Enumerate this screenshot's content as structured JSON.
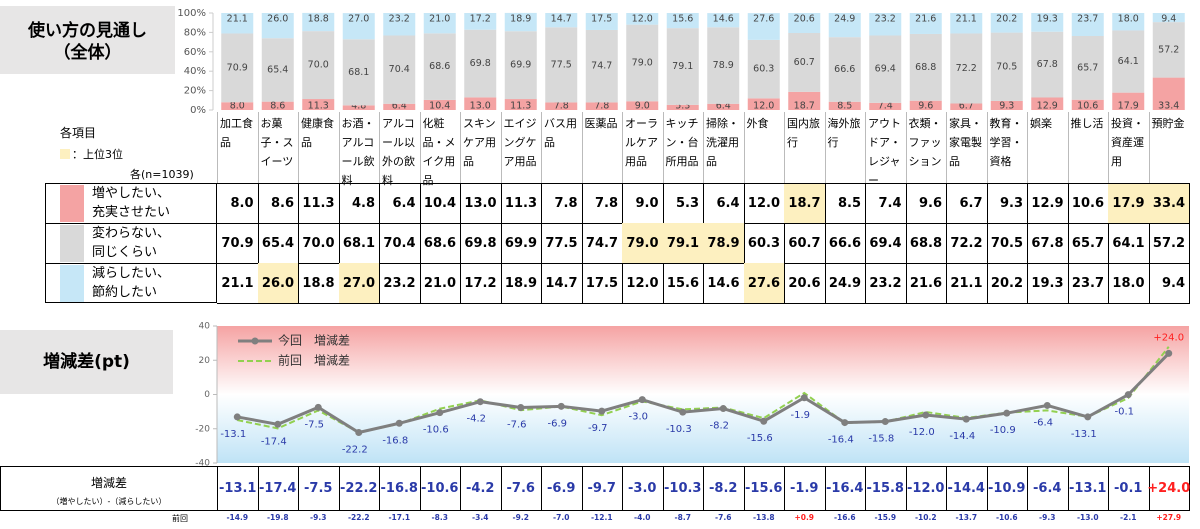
{
  "title": "使い方の見通し",
  "subtitle": "（全体）",
  "legend_note": {
    "heading": "各項目",
    "highlight": "：上位3位",
    "highlight_color": "#fdf0c0",
    "sample": "各(n=1039)"
  },
  "chart_data": [
    {
      "type": "bar",
      "stacked": true,
      "categories": [
        "加工食品",
        "お菓子・スイーツ",
        "健康食品",
        "お酒・アルコール飲料",
        "アルコール以外の飲料",
        "化粧品・メイク用品",
        "スキンケア用品",
        "エイジングケア用品",
        "バス用品",
        "医薬品",
        "オーラルケア用品",
        "キッチン・台所用品",
        "掃除・洗濯用品",
        "外食",
        "国内旅行",
        "海外旅行",
        "アウトドア・レジャー",
        "衣類・ファッション",
        "家具・家電製品",
        "教育・学習・資格",
        "娯楽",
        "推し活",
        "投資・資産運用",
        "預貯金"
      ],
      "series": [
        {
          "name": "増やしたい、充実させたい",
          "color": "#f4a3a3",
          "values": [
            8.0,
            8.6,
            11.3,
            4.8,
            6.4,
            10.4,
            13.0,
            11.3,
            7.8,
            7.8,
            9.0,
            5.3,
            6.4,
            12.0,
            18.7,
            8.5,
            7.4,
            9.6,
            6.7,
            9.3,
            12.9,
            10.6,
            17.9,
            33.4
          ],
          "value_labels": [
            "8.0",
            "8.6",
            "11.3",
            "4.8",
            "6.4",
            "10.4",
            "13.0",
            "11.3",
            "7.8",
            "7.8",
            "9.0",
            "5.3",
            "6.4",
            "12.0",
            "18.7",
            "8.5",
            "7.4",
            "9.6",
            "6.7",
            "9.3",
            "12.9",
            "10.6",
            "17.9",
            "33.4"
          ]
        },
        {
          "name": "変わらない、同じくらい",
          "color": "#d9d9d9",
          "values": [
            70.9,
            65.4,
            70.0,
            68.1,
            70.4,
            68.6,
            69.8,
            69.9,
            77.5,
            74.7,
            79.0,
            79.1,
            78.9,
            60.3,
            60.7,
            66.6,
            69.4,
            68.8,
            72.2,
            70.5,
            67.8,
            65.7,
            64.1,
            57.2
          ],
          "value_labels": [
            "70.9",
            "65.4",
            "70.0",
            "68.1",
            "70.4",
            "68.6",
            "69.8",
            "69.9",
            "77.5",
            "74.7",
            "79.0",
            "79.1",
            "78.9",
            "60.3",
            "60.7",
            "66.6",
            "69.4",
            "68.8",
            "72.2",
            "70.5",
            "67.8",
            "65.7",
            "64.1",
            "57.2"
          ]
        },
        {
          "name": "減らしたい、節約したい",
          "color": "#c6e7f7",
          "values": [
            21.1,
            26.0,
            18.8,
            27.0,
            23.2,
            21.0,
            17.2,
            18.9,
            14.7,
            17.5,
            12.0,
            15.6,
            14.6,
            27.6,
            20.6,
            24.9,
            23.2,
            21.6,
            21.1,
            20.2,
            19.3,
            23.7,
            18.0,
            9.4
          ],
          "value_labels": [
            "21.1",
            "26.0",
            "18.8",
            "27.0",
            "23.2",
            "21.0",
            "17.2",
            "18.9",
            "14.7",
            "17.5",
            "12.0",
            "15.6",
            "14.6",
            "27.6",
            "20.6",
            "24.9",
            "23.2",
            "21.6",
            "21.1",
            "20.2",
            "19.3",
            "23.7",
            "18.0",
            "9.4"
          ]
        }
      ],
      "ylim": [
        0,
        100
      ],
      "yticks": [
        {
          "value": 0,
          "label": "0%"
        },
        {
          "value": 20,
          "label": "20%"
        },
        {
          "value": 40,
          "label": "40%"
        },
        {
          "value": 60,
          "label": "60%"
        },
        {
          "value": 80,
          "label": "80%"
        },
        {
          "value": 100,
          "label": "100%"
        }
      ]
    },
    {
      "type": "line",
      "title": "増減差(pt)",
      "series": [
        {
          "name": "今回　増減差",
          "color": "#7f7f7f",
          "dashed": false,
          "markers": true,
          "values": [
            -13.1,
            -17.4,
            -7.5,
            -22.2,
            -16.8,
            -10.6,
            -4.2,
            -7.6,
            -6.9,
            -9.7,
            -3.0,
            -10.3,
            -8.2,
            -15.6,
            -1.9,
            -16.4,
            -15.8,
            -12.0,
            -14.4,
            -10.9,
            -6.4,
            -13.1,
            -0.1,
            24.0
          ],
          "value_labels": [
            "-13.1",
            "-17.4",
            "-7.5",
            "-22.2",
            "-16.8",
            "-10.6",
            "-4.2",
            "-7.6",
            "-6.9",
            "-9.7",
            "-3.0",
            "-10.3",
            "-8.2",
            "-15.6",
            "-1.9",
            "-16.4",
            "-15.8",
            "-12.0",
            "-14.4",
            "-10.9",
            "-6.4",
            "-13.1",
            "-0.1",
            "+24.0"
          ]
        },
        {
          "name": "前回　増減差",
          "color": "#92d050",
          "dashed": true,
          "markers": false,
          "values": [
            -14.9,
            -19.8,
            -9.3,
            -22.2,
            -17.1,
            -8.3,
            -3.4,
            -9.2,
            -7.0,
            -12.1,
            -4.0,
            -8.7,
            -7.6,
            -13.8,
            0.9,
            -16.6,
            -15.9,
            -10.2,
            -13.7,
            -10.6,
            -9.3,
            -13.0,
            -2.1,
            27.9
          ],
          "value_labels": [
            "-14.9",
            "-19.8",
            "-9.3",
            "-22.2",
            "-17.1",
            "-8.3",
            "-3.4",
            "-9.2",
            "-7.0",
            "-12.1",
            "-4.0",
            "-8.7",
            "-7.6",
            "-13.8",
            "+0.9",
            "-16.6",
            "-15.9",
            "-10.2",
            "-13.7",
            "-10.6",
            "-9.3",
            "-13.0",
            "-2.1",
            "+27.9"
          ]
        }
      ],
      "ylim": [
        -40,
        40
      ],
      "yticks": [
        -40,
        -20,
        0,
        20,
        40
      ],
      "positive_color": "#ff2020",
      "negative_color": "#2a3aa8",
      "background": {
        "top": "#f5a3a3",
        "bottom": "#bfe3f6"
      }
    }
  ],
  "table": {
    "row_label": "増減差",
    "row_sublabel": "（増やしたい）-（減らしたい）",
    "prev_label": "前回"
  }
}
